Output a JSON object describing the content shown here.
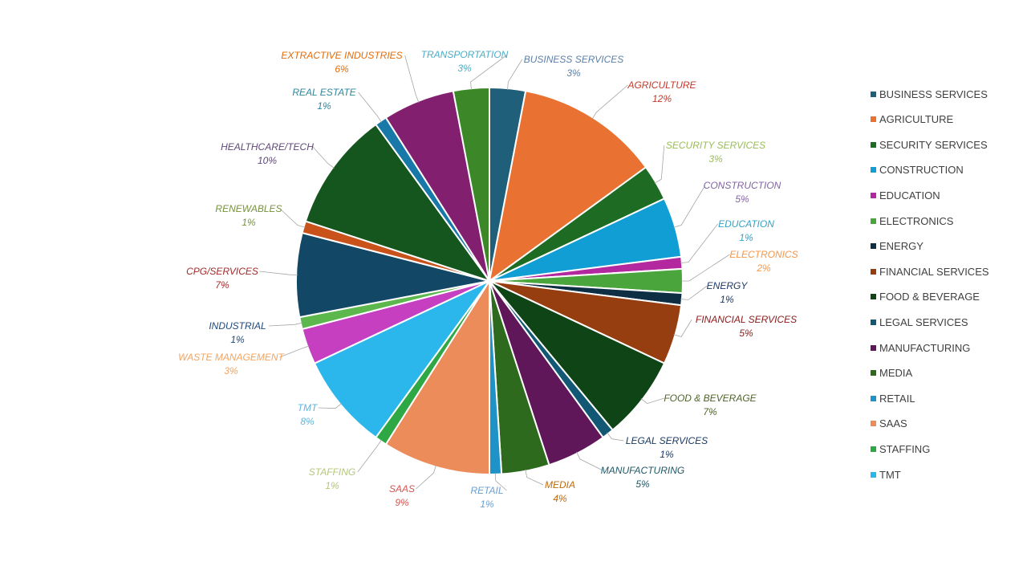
{
  "chart_data": {
    "type": "pie",
    "title": "",
    "slices": [
      {
        "label": "BUSINESS SERVICES",
        "value": 3,
        "pct_label": "3%",
        "color": "#1f5f7a",
        "label_color": "#5b7fa8"
      },
      {
        "label": "AGRICULTURE",
        "value": 12,
        "pct_label": "12%",
        "color": "#e97132",
        "label_color": "#c0392b"
      },
      {
        "label": "SECURITY SERVICES",
        "value": 3,
        "pct_label": "3%",
        "color": "#1e6b24",
        "label_color": "#9bbb59"
      },
      {
        "label": "CONSTRUCTION",
        "value": 5,
        "pct_label": "5%",
        "color": "#119ed4",
        "label_color": "#8064a2"
      },
      {
        "label": "EDUCATION",
        "value": 1,
        "pct_label": "1%",
        "color": "#b3289e",
        "label_color": "#31a3c6"
      },
      {
        "label": "ELECTRONICS",
        "value": 2,
        "pct_label": "2%",
        "color": "#4aa63c",
        "label_color": "#f79646"
      },
      {
        "label": "ENERGY",
        "value": 1,
        "pct_label": "1%",
        "color": "#0e2e44",
        "label_color": "#1f3864"
      },
      {
        "label": "FINANCIAL SERVICES",
        "value": 5,
        "pct_label": "5%",
        "color": "#963e0f",
        "label_color": "#8b1a1a"
      },
      {
        "label": "FOOD & BEVERAGE",
        "value": 7,
        "pct_label": "7%",
        "color": "#0f4417",
        "label_color": "#4f6228"
      },
      {
        "label": "LEGAL SERVICES",
        "value": 1,
        "pct_label": "1%",
        "color": "#125875",
        "label_color": "#17375e"
      },
      {
        "label": "MANUFACTURING",
        "value": 5,
        "pct_label": "5%",
        "color": "#601759",
        "label_color": "#215868"
      },
      {
        "label": "MEDIA",
        "value": 4,
        "pct_label": "4%",
        "color": "#2e6a1e",
        "label_color": "#c0680f"
      },
      {
        "label": "RETAIL",
        "value": 1,
        "pct_label": "1%",
        "color": "#1f93c8",
        "label_color": "#6a9ed0"
      },
      {
        "label": "SAAS",
        "value": 9,
        "pct_label": "9%",
        "color": "#ed8c5b",
        "label_color": "#d9534f"
      },
      {
        "label": "STAFFING",
        "value": 1,
        "pct_label": "1%",
        "color": "#2ea844",
        "label_color": "#b4c77a"
      },
      {
        "label": "TMT",
        "value": 8,
        "pct_label": "8%",
        "color": "#2bb6ec",
        "label_color": "#5fb4d9"
      },
      {
        "label": "WASTE MANAGEMENT",
        "value": 3,
        "pct_label": "3%",
        "color": "#c53fc0",
        "label_color": "#f4a460"
      },
      {
        "label": "INDUSTRIAL",
        "value": 1,
        "pct_label": "1%",
        "color": "#5cb84c",
        "label_color": "#1f497d"
      },
      {
        "label": "CPG/SERVICES",
        "value": 7,
        "pct_label": "7%",
        "color": "#134766",
        "label_color": "#a52a2a"
      },
      {
        "label": "RENEWABLES",
        "value": 1,
        "pct_label": "1%",
        "color": "#c9521b",
        "label_color": "#76923c"
      },
      {
        "label": "HEALTHCARE/TECH",
        "value": 10,
        "pct_label": "10%",
        "color": "#15561e",
        "label_color": "#5f497a"
      },
      {
        "label": "REAL ESTATE",
        "value": 1,
        "pct_label": "1%",
        "color": "#1878a8",
        "label_color": "#31859c"
      },
      {
        "label": "EXTRACTIVE INDUSTRIES",
        "value": 6,
        "pct_label": "6%",
        "color": "#82206f",
        "label_color": "#e36c09"
      },
      {
        "label": "TRANSPORTATION",
        "value": 3,
        "pct_label": "3%",
        "color": "#3c8828",
        "label_color": "#4bacc6"
      }
    ],
    "legend": {
      "placement": "right",
      "entries": [
        "BUSINESS SERVICES",
        "AGRICULTURE",
        "SECURITY SERVICES",
        "CONSTRUCTION",
        "EDUCATION",
        "ELECTRONICS",
        "ENERGY",
        "FINANCIAL SERVICES",
        "FOOD & BEVERAGE",
        "LEGAL SERVICES",
        "MANUFACTURING",
        "MEDIA",
        "RETAIL",
        "SAAS",
        "STAFFING",
        "TMT"
      ]
    }
  }
}
